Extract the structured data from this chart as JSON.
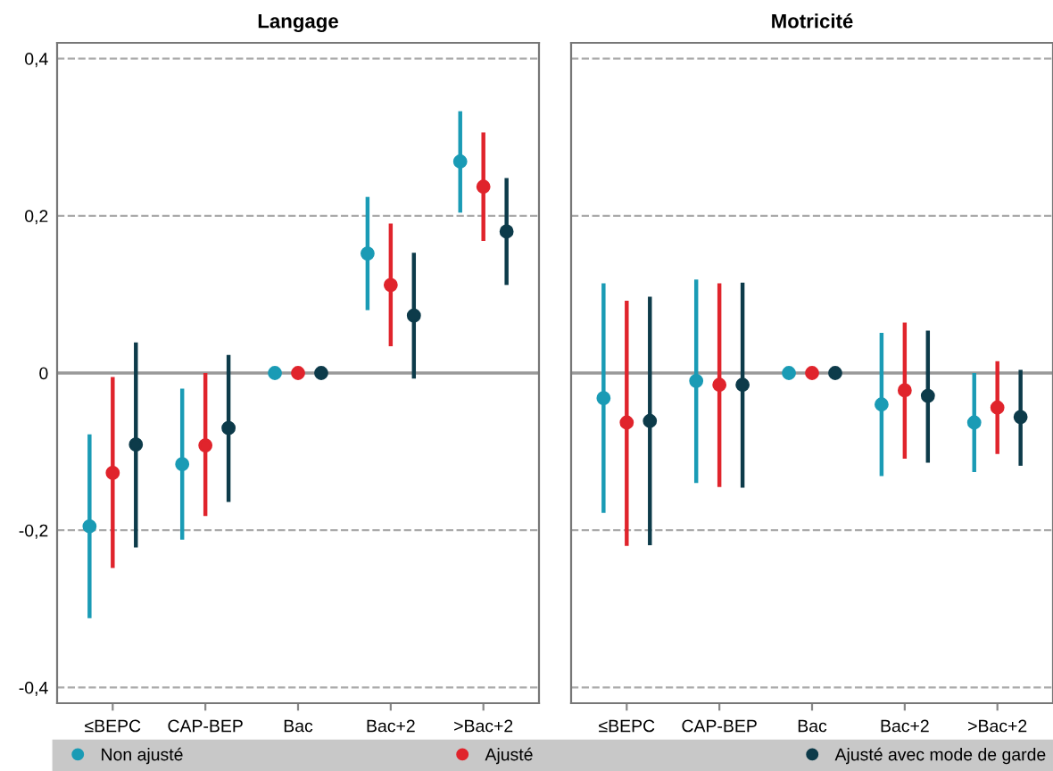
{
  "chart_data": [
    {
      "type": "scatter",
      "title": "Langage",
      "categories": [
        "≤BEPC",
        "CAP-BEP",
        "Bac",
        "Bac+2",
        ">Bac+2"
      ],
      "ylim": [
        -0.42,
        0.42
      ],
      "yticks": [
        {
          "value": -0.4,
          "label": "-0,4"
        },
        {
          "value": -0.2,
          "label": "-0,2"
        },
        0,
        {
          "value": 0.2,
          "label": "0,2"
        },
        {
          "value": 0.4,
          "label": "0,4"
        }
      ],
      "grid": "y",
      "legend": "bottom",
      "marker": "circle",
      "ref_lines": [
        {
          "axis": "y",
          "value": 0,
          "color": "#999999",
          "line_style": "solid"
        }
      ],
      "series": [
        {
          "name": "Non ajusté",
          "color": "#1a9bb5",
          "values": [
            -0.195,
            -0.116,
            0,
            0.152,
            0.269
          ],
          "errors": [
            [
              -0.312,
              -0.078
            ],
            [
              -0.212,
              -0.02
            ],
            null,
            [
              0.08,
              0.224
            ],
            [
              0.204,
              0.333
            ]
          ]
        },
        {
          "name": "Ajusté",
          "color": "#e0242c",
          "values": [
            -0.127,
            -0.092,
            0,
            0.112,
            0.237
          ],
          "errors": [
            [
              -0.248,
              -0.005
            ],
            [
              -0.182,
              0
            ],
            null,
            [
              0.034,
              0.19
            ],
            [
              0.168,
              0.306
            ]
          ]
        },
        {
          "name": "Ajusté avec mode de garde",
          "color": "#0d3b4a",
          "values": [
            -0.091,
            -0.07,
            0,
            0.073,
            0.18
          ],
          "errors": [
            [
              -0.222,
              0.039
            ],
            [
              -0.164,
              0.023
            ],
            null,
            [
              -0.007,
              0.153
            ],
            [
              0.112,
              0.248
            ]
          ]
        }
      ]
    },
    {
      "type": "scatter",
      "title": "Motricité",
      "categories": [
        "≤BEPC",
        "CAP-BEP",
        "Bac",
        "Bac+2",
        ">Bac+2"
      ],
      "ylim": [
        -0.42,
        0.42
      ],
      "yticks": [
        {
          "value": -0.4,
          "label": null
        },
        {
          "value": -0.2,
          "label": null
        },
        {
          "value": 0,
          "label": null
        },
        {
          "value": 0.2,
          "label": null
        },
        {
          "value": 0.4,
          "label": null
        }
      ],
      "tick_labels": "x",
      "grid": "y",
      "marker": "circle",
      "ref_lines": [
        {
          "axis": "y",
          "value": 0,
          "color": "#999999",
          "line_style": "solid"
        }
      ],
      "series": [
        {
          "color": "#1a9bb5",
          "values": [
            -0.032,
            -0.01,
            0,
            -0.04,
            -0.063
          ],
          "errors": [
            [
              -0.178,
              0.114
            ],
            [
              -0.14,
              0.119
            ],
            null,
            [
              -0.131,
              0.051
            ],
            [
              -0.126,
              0
            ]
          ]
        },
        {
          "color": "#e0242c",
          "values": [
            -0.063,
            -0.015,
            0,
            -0.022,
            -0.044
          ],
          "errors": [
            [
              -0.22,
              0.092
            ],
            [
              -0.145,
              0.114
            ],
            null,
            [
              -0.109,
              0.064
            ],
            [
              -0.103,
              0.015
            ]
          ]
        },
        {
          "color": "#0d3b4a",
          "values": [
            -0.061,
            -0.015,
            0,
            -0.029,
            -0.056
          ],
          "errors": [
            [
              -0.219,
              0.097
            ],
            [
              -0.146,
              0.115
            ],
            null,
            [
              -0.114,
              0.054
            ],
            [
              -0.118,
              0.004
            ]
          ]
        }
      ]
    }
  ]
}
